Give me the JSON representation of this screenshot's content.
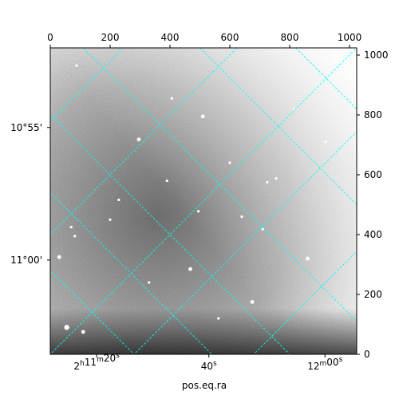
{
  "chart_data": {
    "type": "heatmap",
    "title": "",
    "xlabel": "pos.eq.ra",
    "ylabel": "",
    "pixel_axes": {
      "x_range": [
        0,
        1024
      ],
      "y_range": [
        0,
        1024
      ],
      "top_ticks": [
        0,
        200,
        400,
        600,
        800,
        1000
      ],
      "right_ticks": [
        0,
        200,
        400,
        600,
        800,
        1000
      ]
    },
    "world_axes": {
      "ra_ticks": [
        {
          "value": "2h11m20s",
          "h": "2",
          "m": "11",
          "s": "20",
          "px": 155
        },
        {
          "value": "40s",
          "s": "40",
          "px": 530
        },
        {
          "value": "12m00s",
          "m": "12",
          "s": "00",
          "px": 918
        }
      ],
      "dec_ticks": [
        {
          "value": "10°55'",
          "py": 758
        },
        {
          "value": "11°00'",
          "py": 315
        }
      ]
    },
    "grid": true,
    "grid_color": "#00ffff",
    "colormap": "gray",
    "stars": [
      {
        "x": 88,
        "y": 965,
        "r": 2
      },
      {
        "x": 510,
        "y": 795,
        "r": 3
      },
      {
        "x": 296,
        "y": 718,
        "r": 3
      },
      {
        "x": 406,
        "y": 855,
        "r": 2
      },
      {
        "x": 725,
        "y": 575,
        "r": 2
      },
      {
        "x": 755,
        "y": 588,
        "r": 2
      },
      {
        "x": 229,
        "y": 516,
        "r": 2
      },
      {
        "x": 495,
        "y": 478,
        "r": 2
      },
      {
        "x": 468,
        "y": 285,
        "r": 3
      },
      {
        "x": 30,
        "y": 325,
        "r": 3
      },
      {
        "x": 70,
        "y": 425,
        "r": 2
      },
      {
        "x": 82,
        "y": 395,
        "r": 2
      },
      {
        "x": 710,
        "y": 418,
        "r": 2
      },
      {
        "x": 860,
        "y": 320,
        "r": 3
      },
      {
        "x": 675,
        "y": 175,
        "r": 3
      },
      {
        "x": 55,
        "y": 90,
        "r": 4
      },
      {
        "x": 110,
        "y": 75,
        "r": 3
      },
      {
        "x": 562,
        "y": 120,
        "r": 2
      },
      {
        "x": 600,
        "y": 640,
        "r": 2
      },
      {
        "x": 390,
        "y": 580,
        "r": 2
      },
      {
        "x": 200,
        "y": 450,
        "r": 2
      },
      {
        "x": 920,
        "y": 710,
        "r": 2
      },
      {
        "x": 330,
        "y": 240,
        "r": 2
      },
      {
        "x": 640,
        "y": 460,
        "r": 2
      },
      {
        "x": 815,
        "y": 820,
        "r": 2
      },
      {
        "x": 1000,
        "y": 920,
        "r": 2
      }
    ]
  }
}
